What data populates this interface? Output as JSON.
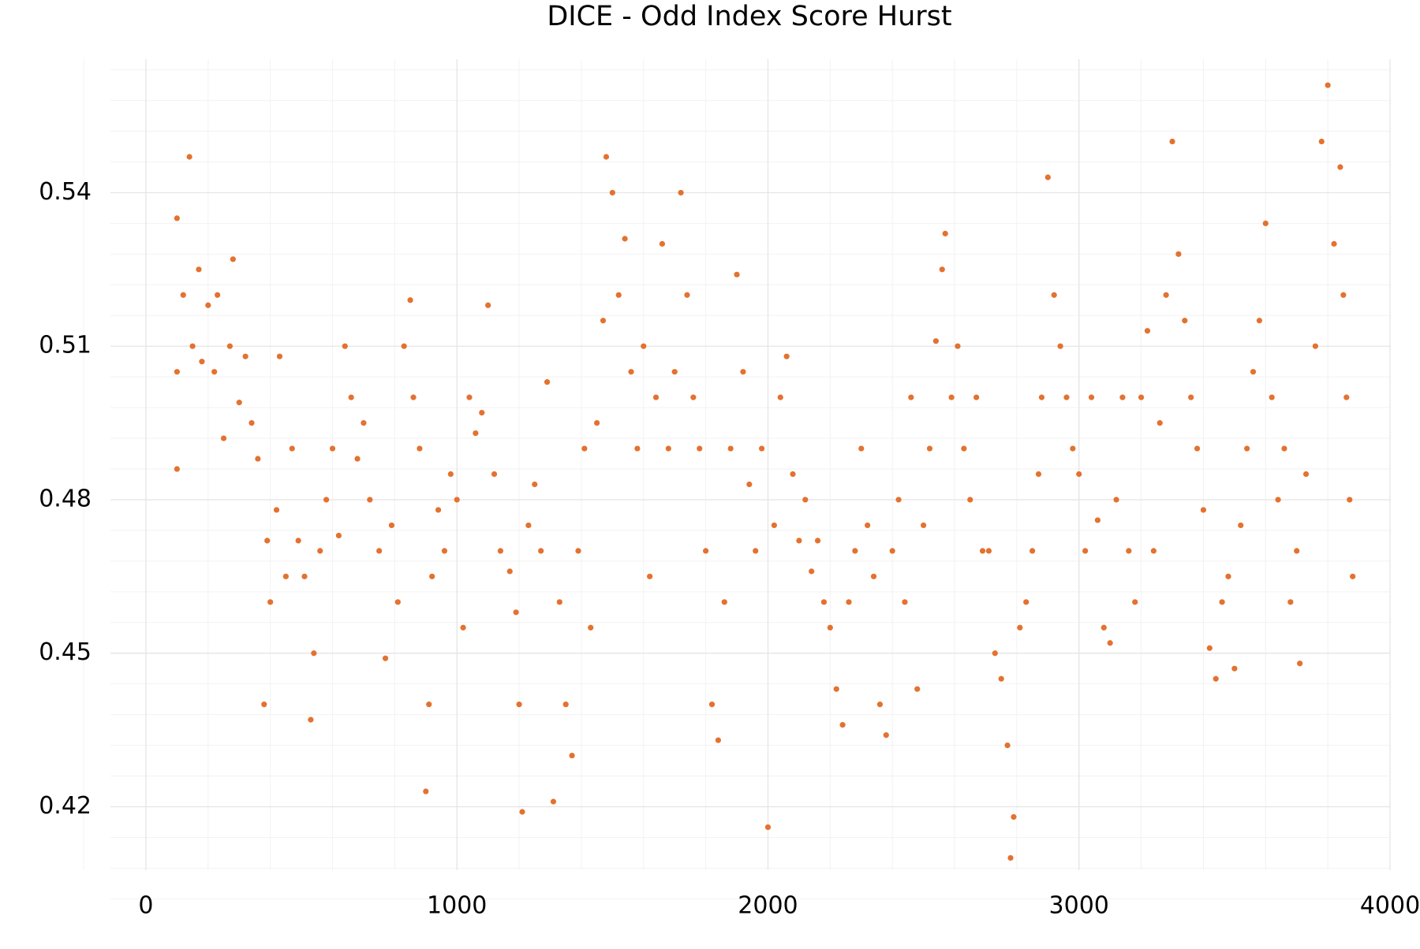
{
  "chart_data": {
    "type": "scatter",
    "title": "DICE - Odd Index Score Hurst",
    "x": [
      100,
      100,
      100,
      120,
      140,
      150,
      170,
      180,
      200,
      220,
      230,
      250,
      270,
      280,
      300,
      320,
      340,
      360,
      380,
      390,
      400,
      420,
      430,
      450,
      470,
      490,
      510,
      530,
      540,
      560,
      580,
      600,
      620,
      640,
      660,
      680,
      700,
      720,
      750,
      770,
      790,
      810,
      830,
      850,
      860,
      880,
      900,
      910,
      920,
      940,
      960,
      980,
      1000,
      1020,
      1040,
      1060,
      1080,
      1100,
      1120,
      1140,
      1170,
      1190,
      1200,
      1210,
      1230,
      1250,
      1270,
      1290,
      1310,
      1330,
      1350,
      1370,
      1390,
      1410,
      1430,
      1450,
      1470,
      1480,
      1500,
      1520,
      1540,
      1560,
      1580,
      1600,
      1620,
      1640,
      1660,
      1680,
      1700,
      1720,
      1740,
      1760,
      1780,
      1800,
      1820,
      1840,
      1860,
      1880,
      1900,
      1920,
      1940,
      1960,
      1980,
      2000,
      2020,
      2040,
      2060,
      2080,
      2100,
      2120,
      2140,
      2160,
      2180,
      2200,
      2220,
      2240,
      2260,
      2280,
      2300,
      2320,
      2340,
      2360,
      2380,
      2400,
      2420,
      2440,
      2460,
      2480,
      2500,
      2520,
      2540,
      2560,
      2570,
      2590,
      2610,
      2630,
      2650,
      2670,
      2690,
      2710,
      2730,
      2750,
      2770,
      2780,
      2790,
      2810,
      2830,
      2850,
      2870,
      2880,
      2900,
      2920,
      2940,
      2960,
      2980,
      3000,
      3020,
      3040,
      3060,
      3080,
      3100,
      3120,
      3140,
      3160,
      3180,
      3200,
      3220,
      3240,
      3260,
      3280,
      3300,
      3320,
      3340,
      3360,
      3380,
      3400,
      3420,
      3440,
      3460,
      3480,
      3500,
      3520,
      3540,
      3560,
      3580,
      3600,
      3620,
      3640,
      3660,
      3680,
      3700,
      3710,
      3730,
      3760,
      3780,
      3800,
      3820,
      3840,
      3850,
      3860,
      3870,
      3880
    ],
    "y": [
      0.535,
      0.486,
      0.505,
      0.52,
      0.547,
      0.51,
      0.525,
      0.507,
      0.518,
      0.505,
      0.52,
      0.492,
      0.51,
      0.527,
      0.499,
      0.508,
      0.495,
      0.488,
      0.44,
      0.472,
      0.46,
      0.478,
      0.508,
      0.465,
      0.49,
      0.472,
      0.465,
      0.437,
      0.45,
      0.47,
      0.48,
      0.49,
      0.473,
      0.51,
      0.5,
      0.488,
      0.495,
      0.48,
      0.47,
      0.449,
      0.475,
      0.46,
      0.51,
      0.519,
      0.5,
      0.49,
      0.423,
      0.44,
      0.465,
      0.478,
      0.47,
      0.485,
      0.48,
      0.455,
      0.5,
      0.493,
      0.497,
      0.518,
      0.485,
      0.47,
      0.466,
      0.458,
      0.44,
      0.419,
      0.475,
      0.483,
      0.47,
      0.503,
      0.421,
      0.46,
      0.44,
      0.43,
      0.47,
      0.49,
      0.455,
      0.495,
      0.515,
      0.547,
      0.54,
      0.52,
      0.531,
      0.505,
      0.49,
      0.51,
      0.465,
      0.5,
      0.53,
      0.49,
      0.505,
      0.54,
      0.52,
      0.5,
      0.49,
      0.47,
      0.44,
      0.433,
      0.46,
      0.49,
      0.524,
      0.505,
      0.483,
      0.47,
      0.49,
      0.416,
      0.475,
      0.5,
      0.508,
      0.485,
      0.472,
      0.48,
      0.466,
      0.472,
      0.46,
      0.455,
      0.443,
      0.436,
      0.46,
      0.47,
      0.49,
      0.475,
      0.465,
      0.44,
      0.434,
      0.47,
      0.48,
      0.46,
      0.5,
      0.443,
      0.475,
      0.49,
      0.511,
      0.525,
      0.532,
      0.5,
      0.51,
      0.49,
      0.48,
      0.5,
      0.47,
      0.47,
      0.45,
      0.445,
      0.432,
      0.41,
      0.418,
      0.455,
      0.46,
      0.47,
      0.485,
      0.5,
      0.543,
      0.52,
      0.51,
      0.5,
      0.49,
      0.485,
      0.47,
      0.5,
      0.476,
      0.455,
      0.452,
      0.48,
      0.5,
      0.47,
      0.46,
      0.5,
      0.513,
      0.47,
      0.495,
      0.52,
      0.55,
      0.528,
      0.515,
      0.5,
      0.49,
      0.478,
      0.451,
      0.445,
      0.46,
      0.465,
      0.447,
      0.475,
      0.49,
      0.505,
      0.515,
      0.534,
      0.5,
      0.48,
      0.49,
      0.46,
      0.47,
      0.448,
      0.485,
      0.51,
      0.55,
      0.561,
      0.53,
      0.545,
      0.52,
      0.5,
      0.48,
      0.465
    ],
    "color": "#e3722f",
    "xlim": [
      -114,
      4000
    ],
    "ylim": [
      0.4076,
      0.5661
    ],
    "xticks": [
      0,
      1000,
      2000,
      3000,
      4000
    ],
    "yticks": [
      0.42,
      0.45,
      0.48,
      0.51,
      0.54
    ],
    "grid": true,
    "minor_divisions": 5
  }
}
